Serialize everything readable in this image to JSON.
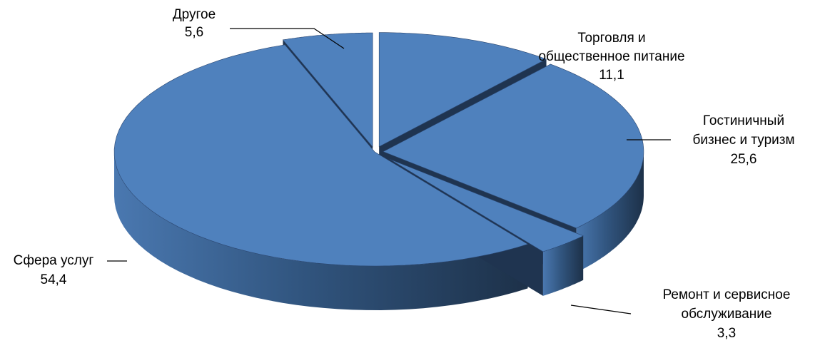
{
  "chart_data": {
    "type": "pie",
    "style": "3d-exploded",
    "title": "",
    "slices": [
      {
        "name": "Торговля и общественное питание",
        "label_lines": [
          "Торговля и",
          "общественное питание"
        ],
        "value_text": "11,1",
        "value": 11.1
      },
      {
        "name": "Гостиничный бизнес и туризм",
        "label_lines": [
          "Гостиничный",
          "бизнес и туризм"
        ],
        "value_text": "25,6",
        "value": 25.6
      },
      {
        "name": "Ремонт и сервисное обслуживание",
        "label_lines": [
          "Ремонт и сервисное",
          "обслуживание"
        ],
        "value_text": "3,3",
        "value": 3.3
      },
      {
        "name": "Сфера услуг",
        "label_lines": [
          "Сфера услуг"
        ],
        "value_text": "54,4",
        "value": 54.4
      },
      {
        "name": "Другое",
        "label_lines": [
          "Другое"
        ],
        "value_text": "5,6",
        "value": 5.6
      }
    ],
    "colors": {
      "top": "#4f81bd",
      "side_light": "#3d679c",
      "side_dark": "#1f3450",
      "edge": "#2a4670"
    }
  }
}
